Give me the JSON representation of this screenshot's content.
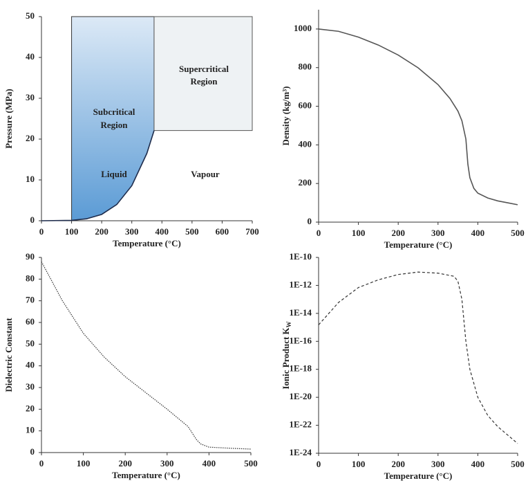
{
  "chart_data": [
    {
      "type": "phase",
      "x_label": "Temperature (°C)",
      "y_label": "Pressure (MPa)",
      "x": [
        0,
        100,
        150,
        200,
        250,
        300,
        350,
        374
      ],
      "series": [
        {
          "color": "#1f2d4d",
          "line_style": "solid",
          "values": [
            0,
            0.1,
            0.48,
            1.55,
            3.97,
            8.58,
            16.5,
            22.1
          ]
        }
      ],
      "xlim": [
        0,
        700
      ],
      "xticks": [
        0,
        100,
        200,
        300,
        400,
        500,
        600,
        700
      ],
      "ylim": [
        0,
        50
      ],
      "yticks": [
        0,
        10,
        20,
        30,
        40,
        50
      ],
      "annotations": [
        "Supercritical",
        "Region",
        "Subcritical",
        "Region",
        "Liquid",
        "Vapour"
      ]
    },
    {
      "type": "line",
      "x_label": "Temperature (°C)",
      "y_label": "Density (kg/m³)",
      "x": [
        0,
        50,
        100,
        150,
        200,
        250,
        300,
        330,
        350,
        360,
        370,
        375,
        380,
        390,
        400,
        425,
        450,
        475,
        500
      ],
      "series": [
        {
          "color": "#555555",
          "line_style": "solid",
          "values": [
            1000,
            988,
            958,
            917,
            865,
            799,
            712,
            640,
            575,
            525,
            430,
            300,
            230,
            175,
            150,
            125,
            110,
            100,
            90
          ]
        }
      ],
      "xlim": [
        0,
        500
      ],
      "xticks": [
        0,
        100,
        200,
        300,
        400,
        500
      ],
      "ylim": [
        0,
        1100
      ],
      "yticks": [
        0,
        200,
        400,
        600,
        800,
        1000
      ]
    },
    {
      "type": "line",
      "x_label": "Temperature (°C)",
      "y_label": "Dielectric Constant",
      "x": [
        0,
        50,
        100,
        150,
        200,
        250,
        300,
        350,
        370,
        380,
        400,
        450,
        500
      ],
      "series": [
        {
          "color": "#333333",
          "line_style": "dotted",
          "values": [
            88,
            70,
            55,
            44,
            35,
            27.5,
            20,
            12,
            6,
            4,
            2.5,
            2,
            1.6
          ]
        }
      ],
      "xlim": [
        0,
        500
      ],
      "xticks": [
        0,
        100,
        200,
        300,
        400,
        500
      ],
      "ylim": [
        0,
        90
      ],
      "yticks": [
        0,
        10,
        20,
        30,
        40,
        50,
        60,
        70,
        80,
        90
      ]
    },
    {
      "type": "line",
      "x_label": "Temperature (°C)",
      "y_label": "Ionic Product K",
      "y_label_subscript": "W",
      "log_y": true,
      "x": [
        0,
        50,
        100,
        150,
        200,
        250,
        300,
        340,
        350,
        360,
        370,
        380,
        390,
        400,
        425,
        450,
        475,
        500
      ],
      "series": [
        {
          "color": "#333333",
          "line_style": "dashed",
          "values": [
            1.5e-15,
            6e-14,
            7e-13,
            2.5e-12,
            6e-12,
            9e-12,
            7.5e-12,
            4.5e-12,
            2e-12,
            1e-13,
            1e-16,
            1e-18,
            1e-19,
            1e-20,
            5e-22,
            8e-23,
            2e-23,
            5e-24
          ]
        }
      ],
      "xlim": [
        0,
        500
      ],
      "xticks": [
        0,
        100,
        200,
        300,
        400,
        500
      ],
      "ylim": [
        1e-24,
        1e-10
      ],
      "yticks": [
        {
          "value": 1e-24,
          "label": "1E-24"
        },
        {
          "value": 1e-22,
          "label": "1E-22"
        },
        {
          "value": 1e-20,
          "label": "1E-20"
        },
        {
          "value": 1e-18,
          "label": "1E-18"
        },
        {
          "value": 1e-16,
          "label": "1E-16"
        },
        {
          "value": 1e-14,
          "label": "1E-14"
        },
        {
          "value": 1e-12,
          "label": "1E-12"
        },
        {
          "value": 1e-10,
          "label": "1E-10"
        }
      ]
    }
  ]
}
